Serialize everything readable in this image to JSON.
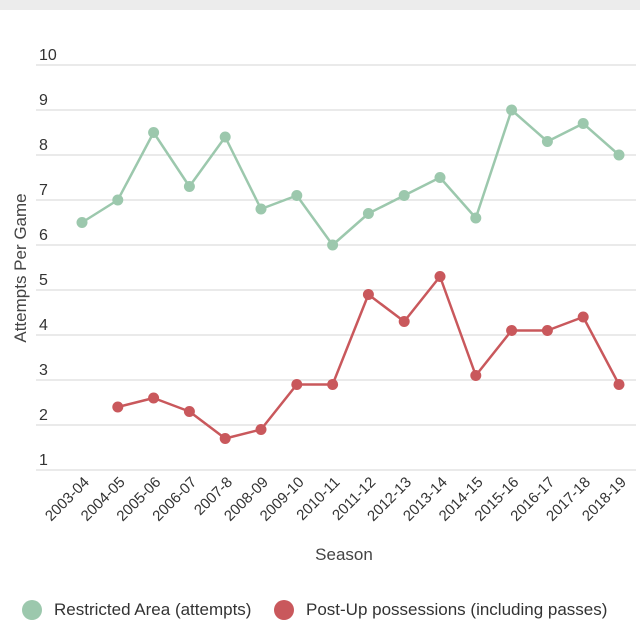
{
  "chart_data": {
    "type": "line",
    "categories": [
      "2003-04",
      "2004-05",
      "2005-06",
      "2006-07",
      "2007-8",
      "2008-09",
      "2009-10",
      "2010-11",
      "2011-12",
      "2012-13",
      "2013-14",
      "2014-15",
      "2015-16",
      "2016-17",
      "2017-18",
      "2018-19"
    ],
    "series": [
      {
        "name": "Restricted Area (attempts)",
        "color": "#9cc8ad",
        "values": [
          6.5,
          7.0,
          8.5,
          7.3,
          8.4,
          6.8,
          7.1,
          6.0,
          6.7,
          7.1,
          7.5,
          6.6,
          9.0,
          8.3,
          8.7,
          8.0
        ]
      },
      {
        "name": "Post-Up possessions (including passes)",
        "color": "#c9585c",
        "values": [
          null,
          2.4,
          2.6,
          2.3,
          1.7,
          1.9,
          2.9,
          2.9,
          4.9,
          4.3,
          5.3,
          3.1,
          4.1,
          4.1,
          4.4,
          2.9
        ]
      }
    ],
    "xlabel": "Season",
    "ylabel": "Attempts Per Game",
    "ylim": [
      1,
      10
    ],
    "yticks": [
      1,
      2,
      3,
      4,
      5,
      6,
      7,
      8,
      9,
      10
    ],
    "grid": true,
    "legend_position": "bottom"
  }
}
